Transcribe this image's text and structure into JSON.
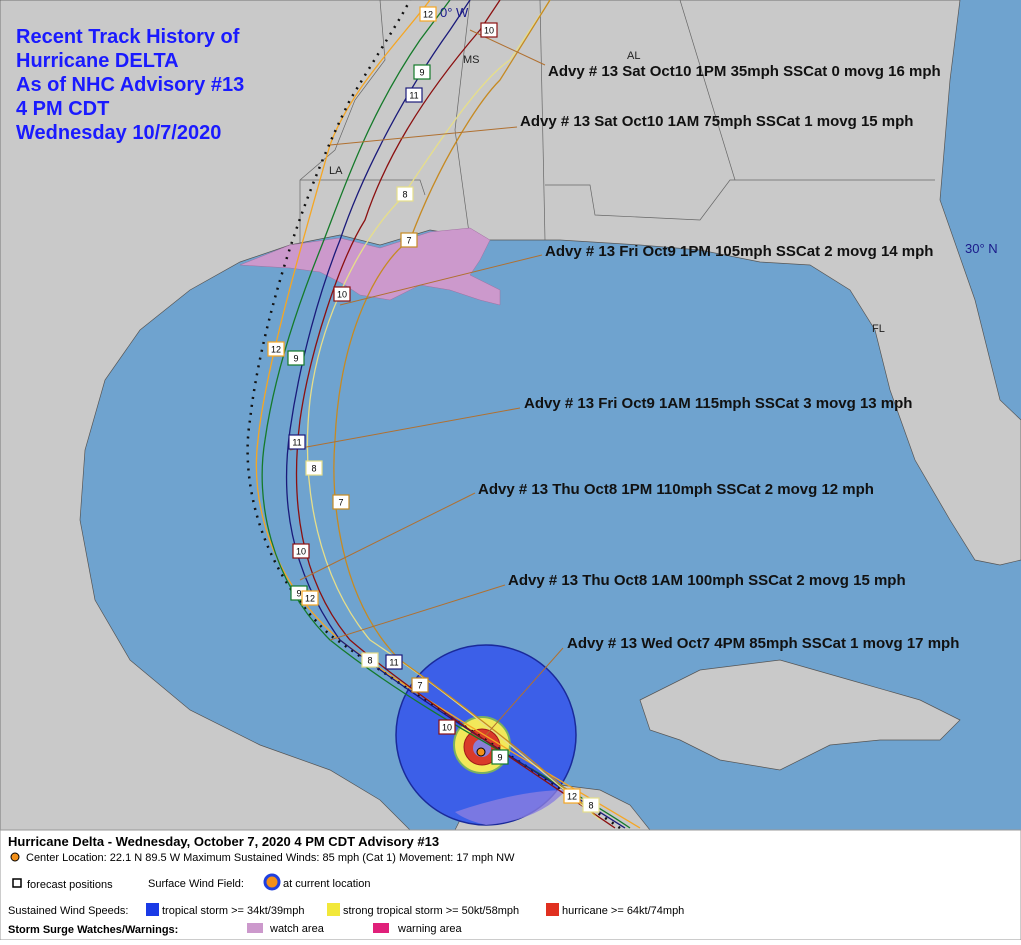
{
  "title_lines": [
    "Recent Track History of",
    "Hurricane DELTA",
    "As of NHC Advisory #13",
    "4 PM CDT",
    "Wednesday 10/7/2020"
  ],
  "advisories": [
    "Advy # 13 Sat Oct10 1PM  35mph SSCat 0 movg 16 mph",
    "Advy # 13 Sat Oct10 1AM  75mph SSCat 1 movg 15 mph",
    "Advy # 13 Fri Oct9 1PM  105mph SSCat 2 movg 14 mph",
    "Advy # 13 Fri Oct9 1AM  115mph SSCat 3 movg 13 mph",
    "Advy # 13 Thu Oct8 1PM  110mph SSCat 2 movg 12 mph",
    "Advy # 13 Thu Oct8 1AM  100mph SSCat 2 movg 15 mph",
    "Advy # 13 Wed Oct7 4PM  85mph SSCat 1 movg 17 mph"
  ],
  "map_labels": [
    "AL",
    "MS",
    "LA",
    "FL",
    "30° N",
    "0° W"
  ],
  "track_labels": [
    "12",
    "10",
    "9",
    "11",
    "8",
    "7",
    "10",
    "12",
    "9",
    "11",
    "8",
    "7",
    "10",
    "9",
    "12",
    "11",
    "8",
    "7",
    "10",
    "9",
    "12",
    "8"
  ],
  "footer": {
    "headline": "Hurricane Delta  -  Wednesday, October 7, 2020  4 PM CDT   Advisory #13",
    "details": "Center Location: 22.1 N  89.5 W   Maximum Sustained Winds: 85 mph (Cat 1) Movement: 17 mph NW",
    "forecast": "forecast positions",
    "wind_field": "Surface Wind Field:",
    "current": "at current location",
    "speeds": "Sustained Wind Speeds:",
    "ts": "tropical storm >= 34kt/39mph",
    "sts": "strong tropical storm >= 50kt/58mph",
    "hu": "hurricane >= 64kt/74mph",
    "surge": "Storm Surge Watches/Warnings:",
    "watch": "watch area",
    "warning": "warning area"
  }
}
